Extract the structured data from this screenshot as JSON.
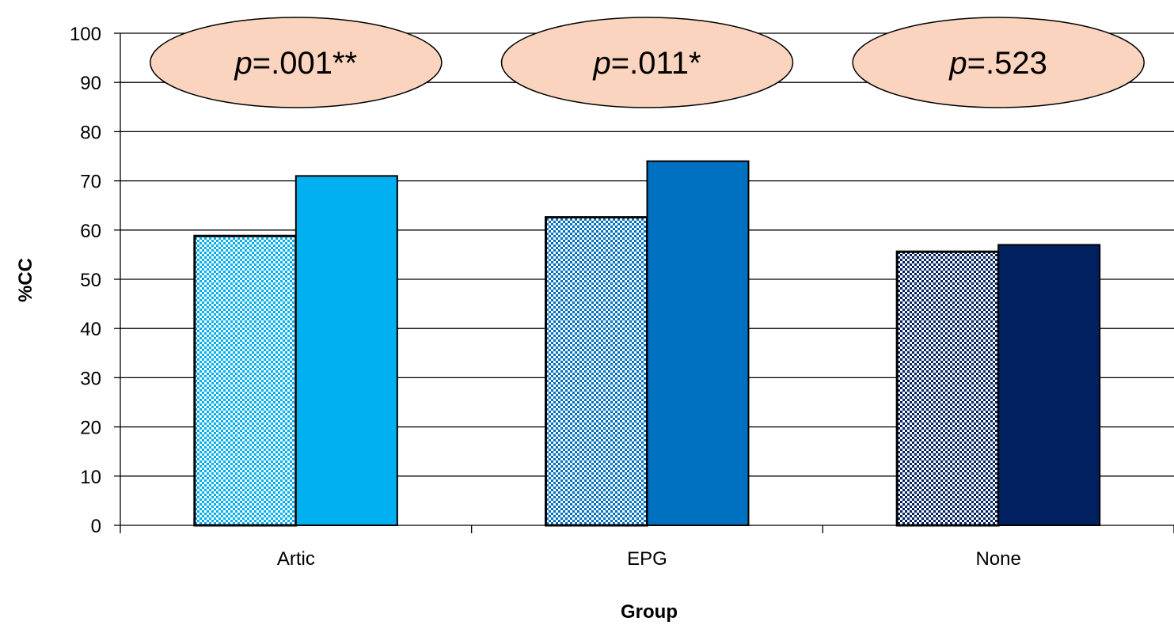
{
  "chart_data": {
    "type": "bar",
    "title": "",
    "xlabel": "Group",
    "ylabel": "%CC",
    "categories": [
      "Artic",
      "EPG",
      "None"
    ],
    "ylim": [
      0,
      100
    ],
    "yticks": [
      0,
      10,
      20,
      30,
      40,
      50,
      60,
      70,
      80,
      90,
      100
    ],
    "grid": true,
    "legend": "none",
    "series": [
      {
        "values": [
          58.8,
          62.6,
          55.6
        ],
        "pattern": "checkered",
        "colors": [
          "#00B0F0",
          "#0070C0",
          "#002060"
        ]
      },
      {
        "values": [
          71.0,
          74.0,
          57.0
        ],
        "pattern": "solid",
        "colors": [
          "#00B0F0",
          "#0070C0",
          "#002060"
        ]
      }
    ],
    "annotations": [
      {
        "category": "Artic",
        "italic": "p",
        "text": "=.001**"
      },
      {
        "category": "EPG",
        "italic": "p",
        "text": "=.011*"
      },
      {
        "category": "None",
        "italic": "p",
        "text": "=.523"
      }
    ],
    "annotation_fill": "#FAD4BE"
  }
}
